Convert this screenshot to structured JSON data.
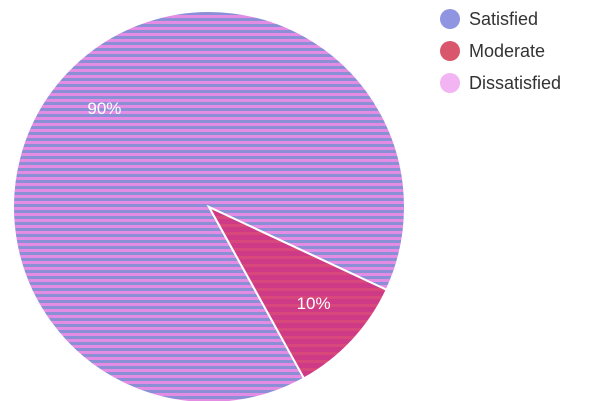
{
  "chart_data": {
    "type": "pie",
    "title": "",
    "categories": [
      "Satisfied",
      "Moderate",
      "Dissatisfied"
    ],
    "values": [
      90,
      10,
      0
    ],
    "value_labels": [
      "90%",
      "10%",
      ""
    ],
    "colors": {
      "satisfied": "#8b8fd6",
      "satisfied_stripe": "#e48ce4",
      "moderate": "#cf3a86",
      "moderate_stripe": "#d8487a",
      "dissatisfied": "#f0aaf0"
    },
    "legend": {
      "placement": "top-right",
      "items": [
        {
          "label": "Satisfied",
          "color": "#8f95e0"
        },
        {
          "label": "Moderate",
          "color": "#d9576c"
        },
        {
          "label": "Dissatisfied",
          "color": "#f2b4f2"
        }
      ]
    }
  }
}
